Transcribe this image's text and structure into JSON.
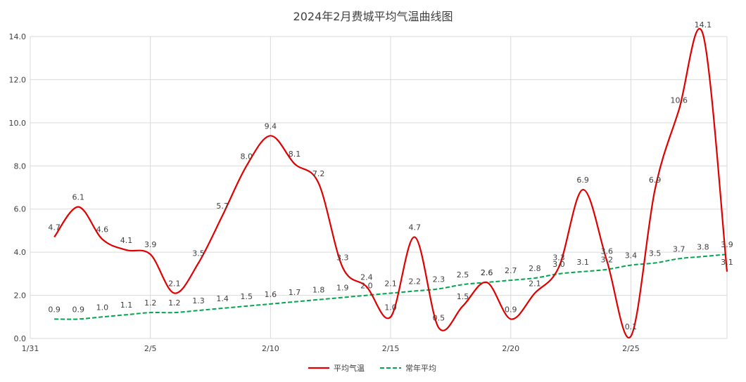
{
  "chart_data": {
    "type": "line",
    "title": "2024年2月费城平均气温曲线图",
    "xlabel": "",
    "ylabel": "",
    "x": [
      "1/31",
      "2/1",
      "2/2",
      "2/3",
      "2/4",
      "2/5",
      "2/6",
      "2/7",
      "2/8",
      "2/9",
      "2/10",
      "2/11",
      "2/12",
      "2/13",
      "2/14",
      "2/15",
      "2/16",
      "2/17",
      "2/18",
      "2/19",
      "2/20",
      "2/21",
      "2/22",
      "2/23",
      "2/24",
      "2/25",
      "2/26",
      "2/27",
      "2/28",
      "2/29"
    ],
    "x_ticks": [
      "1/31",
      "2/5",
      "2/10",
      "2/15",
      "2/20",
      "2/25"
    ],
    "ylim": [
      0,
      14.0
    ],
    "y_ticks": [
      "0.0",
      "2.0",
      "4.0",
      "6.0",
      "8.0",
      "10.0",
      "12.0",
      "14.0"
    ],
    "grid": true,
    "legend_position": "bottom",
    "series": [
      {
        "name": "平均气温",
        "color": "#e00000",
        "style": "solid",
        "values": [
          null,
          4.7,
          6.1,
          4.6,
          4.1,
          3.9,
          2.1,
          3.5,
          5.7,
          8.0,
          9.4,
          8.1,
          7.2,
          3.3,
          2.4,
          1.0,
          4.7,
          0.5,
          1.5,
          2.6,
          0.9,
          2.1,
          3.3,
          6.9,
          3.6,
          0.1,
          6.9,
          10.6,
          14.1,
          3.1
        ]
      },
      {
        "name": "常年平均",
        "color": "#00a650",
        "style": "dashed",
        "values": [
          null,
          0.9,
          0.9,
          1.0,
          1.1,
          1.2,
          1.2,
          1.3,
          1.4,
          1.5,
          1.6,
          1.7,
          1.8,
          1.9,
          2.0,
          2.1,
          2.2,
          2.3,
          2.5,
          2.6,
          2.7,
          2.8,
          3.0,
          3.1,
          3.2,
          3.4,
          3.5,
          3.7,
          3.8,
          3.9
        ]
      }
    ]
  }
}
